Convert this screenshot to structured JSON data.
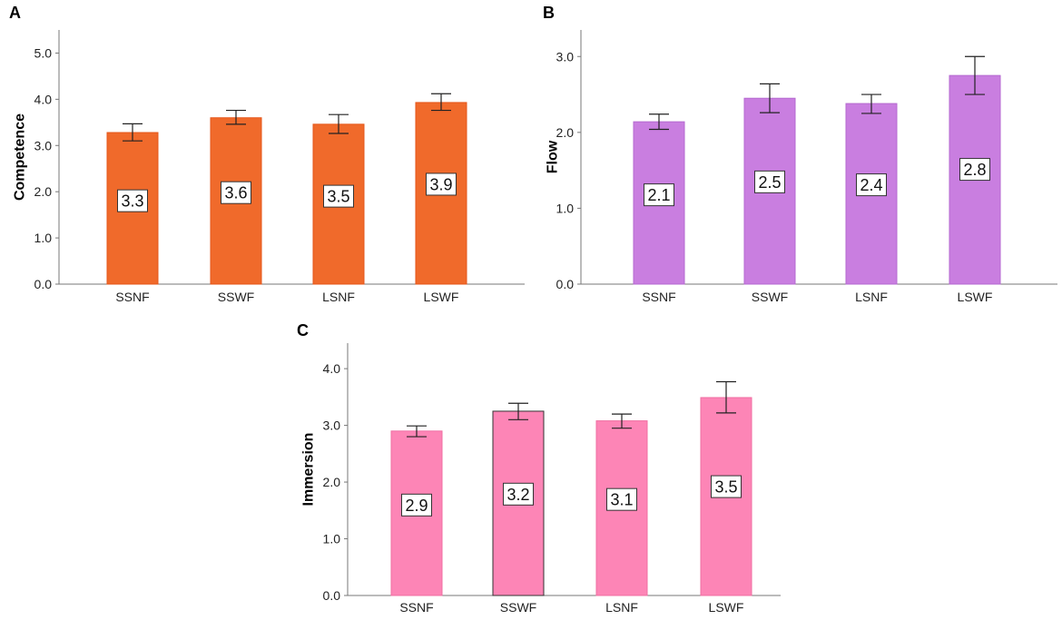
{
  "chart_data": [
    {
      "panel": "A",
      "type": "bar",
      "ylabel": "Competence",
      "categories": [
        "SSNF",
        "SSWF",
        "LSNF",
        "LSWF"
      ],
      "values": [
        3.28,
        3.6,
        3.46,
        3.93
      ],
      "error_low": [
        3.1,
        3.46,
        3.26,
        3.76
      ],
      "error_high": [
        3.47,
        3.76,
        3.67,
        4.12
      ],
      "data_labels": [
        "3.3",
        "3.6",
        "3.5",
        "3.9"
      ],
      "yticks": [
        "0.0",
        "1.0",
        "2.0",
        "3.0",
        "4.0",
        "5.0"
      ],
      "ylim": [
        0,
        5.5
      ],
      "color": "#f06a2b",
      "edge_color": "#e5561a"
    },
    {
      "panel": "B",
      "type": "bar",
      "ylabel": "Flow",
      "categories": [
        "SSNF",
        "SSWF",
        "LSNF",
        "LSWF"
      ],
      "values": [
        2.14,
        2.45,
        2.38,
        2.75
      ],
      "error_low": [
        2.04,
        2.26,
        2.25,
        2.5
      ],
      "error_high": [
        2.24,
        2.64,
        2.5,
        3.0
      ],
      "data_labels": [
        "2.1",
        "2.5",
        "2.4",
        "2.8"
      ],
      "yticks": [
        "0.0",
        "1.0",
        "2.0",
        "3.0"
      ],
      "ylim": [
        0,
        3.35
      ],
      "color": "#c97ee0",
      "edge_color": "#b56ad0"
    },
    {
      "panel": "C",
      "type": "bar",
      "ylabel": "Immersion",
      "categories": [
        "SSNF",
        "SSWF",
        "LSNF",
        "LSWF"
      ],
      "values": [
        2.9,
        3.25,
        3.08,
        3.49
      ],
      "error_low": [
        2.8,
        3.1,
        2.95,
        3.22
      ],
      "error_high": [
        2.99,
        3.39,
        3.2,
        3.77
      ],
      "data_labels": [
        "2.9",
        "3.2",
        "3.1",
        "3.5"
      ],
      "yticks": [
        "0.0",
        "1.0",
        "2.0",
        "3.0",
        "4.0"
      ],
      "ylim": [
        0,
        4.45
      ],
      "color": "#fd85b6",
      "edge_color": "#f06fa3",
      "highlight_index": 1,
      "highlight_edge": "#333333"
    }
  ]
}
